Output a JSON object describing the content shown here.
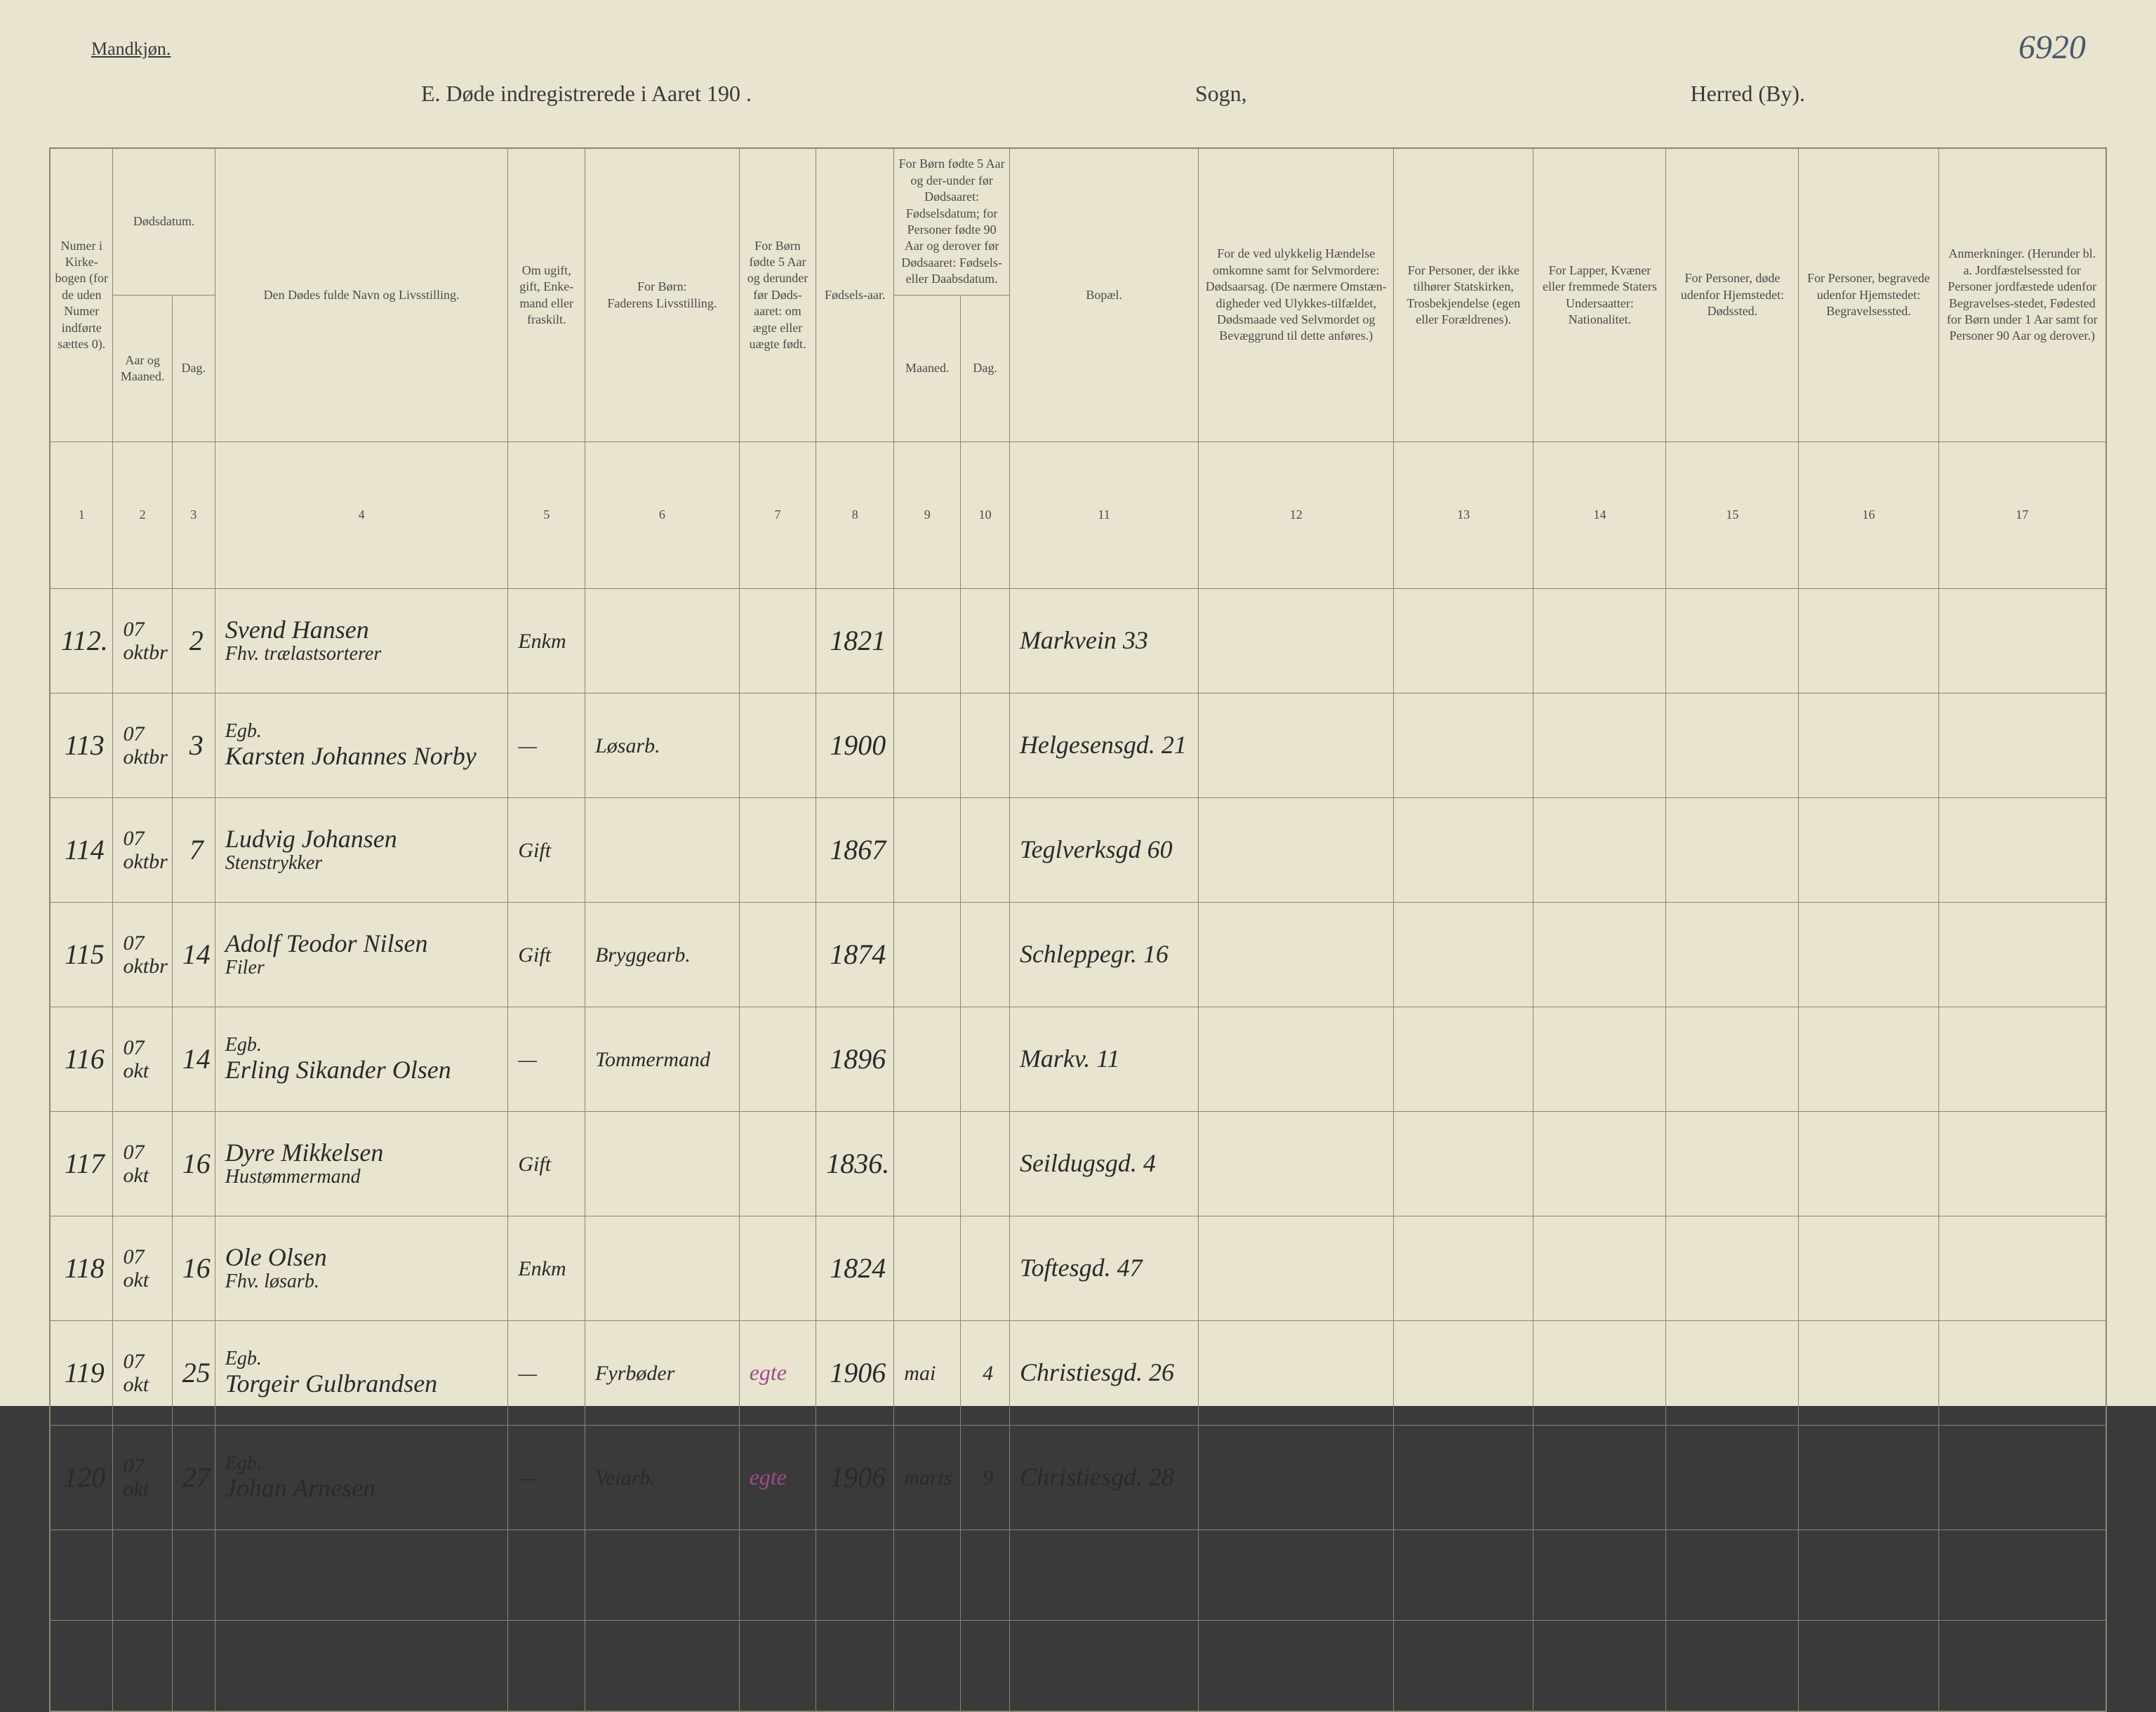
{
  "header": {
    "gender_label": "Mandkjøn.",
    "page_number_handwritten": "6920",
    "title_main": "E.  Døde indregistrerede i Aaret 190    .",
    "title_sogn": "Sogn,",
    "title_herred": "Herred (By)."
  },
  "columns": {
    "c1": "Numer i Kirke-bogen (for de uden Numer indførte sættes 0).",
    "c2_group": "Dødsdatum.",
    "c2": "Aar og Maaned.",
    "c3": "Dag.",
    "c4": "Den Dødes fulde Navn og Livsstilling.",
    "c5": "Om ugift, gift, Enke-mand eller fraskilt.",
    "c6_top": "For Børn:",
    "c6": "Faderens Livsstilling.",
    "c7": "For Børn fødte 5 Aar og derunder før Døds-aaret: om ægte eller uægte født.",
    "c8": "Fødsels-aar.",
    "c9_10_top": "For Børn fødte 5 Aar og der-under før Dødsaaret: Fødselsdatum; for Personer fødte 90 Aar og derover før Dødsaaret: Fødsels- eller Daabsdatum.",
    "c9": "Maaned.",
    "c10": "Dag.",
    "c11": "Bopæl.",
    "c12": "For de ved ulykkelig Hændelse omkomne samt for Selvmordere: Dødsaarsag. (De nærmere Omstæn-digheder ved Ulykkes-tilfældet, Dødsmaade ved Selvmordet og Bevæggrund til dette anføres.)",
    "c13": "For Personer, der ikke tilhører Statskirken, Trosbekjendelse (egen eller Forældrenes).",
    "c14": "For Lapper, Kvæner eller fremmede Staters Undersaatter: Nationalitet.",
    "c15": "For Personer, døde udenfor Hjemstedet: Dødssted.",
    "c16": "For Personer, begravede udenfor Hjemstedet: Begravelsessted.",
    "c17": "Anmerkninger. (Herunder bl. a. Jordfæstelsessted for Personer jordfæstede udenfor Begravelses-stedet, Fødested for Børn under 1 Aar samt for Personer 90 Aar og derover.)"
  },
  "colnums": [
    "1",
    "2",
    "3",
    "4",
    "5",
    "6",
    "7",
    "8",
    "9",
    "10",
    "11",
    "12",
    "13",
    "14",
    "15",
    "16",
    "17"
  ],
  "rows": [
    {
      "num": "112.",
      "month": "07\noktbr",
      "day": "2",
      "name": "Svend Hansen",
      "name_sub": "Fhv. trælastsorterer",
      "status": "Enkm",
      "father": "",
      "egte": "",
      "birth_year": "1821",
      "birth_month": "",
      "birth_day": "",
      "residence": "Markvein 33"
    },
    {
      "num": "113",
      "month": "07\noktbr",
      "day": "3",
      "name": "Karsten Johannes Norby",
      "name_sub": "Egb.",
      "status": "—",
      "father": "Løsarb.",
      "egte": "",
      "birth_year": "1900",
      "birth_month": "",
      "birth_day": "",
      "residence": "Helgesensgd. 21"
    },
    {
      "num": "114",
      "month": "07\noktbr",
      "day": "7",
      "name": "Ludvig Johansen",
      "name_sub": "Stenstrykker",
      "status": "Gift",
      "father": "",
      "egte": "",
      "birth_year": "1867",
      "birth_month": "",
      "birth_day": "",
      "residence": "Teglverksgd 60"
    },
    {
      "num": "115",
      "month": "07\noktbr",
      "day": "14",
      "name": "Adolf Teodor Nilsen",
      "name_sub": "Filer",
      "status": "Gift",
      "father": "Bryggearb.",
      "egte": "",
      "birth_year": "1874",
      "birth_month": "",
      "birth_day": "",
      "residence": "Schleppegr. 16"
    },
    {
      "num": "116",
      "month": "07\nokt",
      "day": "14",
      "name": "Erling Sikander Olsen",
      "name_sub": "Egb.",
      "status": "—",
      "father": "Tommermand",
      "egte": "",
      "birth_year": "1896",
      "birth_month": "",
      "birth_day": "",
      "residence": "Markv. 11"
    },
    {
      "num": "117",
      "month": "07\nokt",
      "day": "16",
      "name": "Dyre Mikkelsen",
      "name_sub": "Hustømmermand",
      "status": "Gift",
      "father": "",
      "egte": "",
      "birth_year": "1836.",
      "birth_month": "",
      "birth_day": "",
      "residence": "Seildugsgd. 4"
    },
    {
      "num": "118",
      "month": "07\nokt",
      "day": "16",
      "name": "Ole Olsen",
      "name_sub": "Fhv. løsarb.",
      "status": "Enkm",
      "father": "",
      "egte": "",
      "birth_year": "1824",
      "birth_month": "",
      "birth_day": "",
      "residence": "Toftesgd. 47"
    },
    {
      "num": "119",
      "month": "07\nokt",
      "day": "25",
      "name": "Torgeir Gulbrandsen",
      "name_sub": "Egb.",
      "status": "—",
      "father": "Fyrbøder",
      "egte": "egte",
      "birth_year": "1906",
      "birth_month": "mai",
      "birth_day": "4",
      "residence": "Christiesgd. 26"
    },
    {
      "num": "120",
      "month": "07\nokt",
      "day": "27",
      "name": "Johan Arnesen",
      "name_sub": "Egb.",
      "status": "—",
      "father": "Veiarb.",
      "egte": "egte",
      "birth_year": "1906",
      "birth_month": "marts",
      "birth_day": "9",
      "residence": "Christiesgd. 28"
    }
  ]
}
